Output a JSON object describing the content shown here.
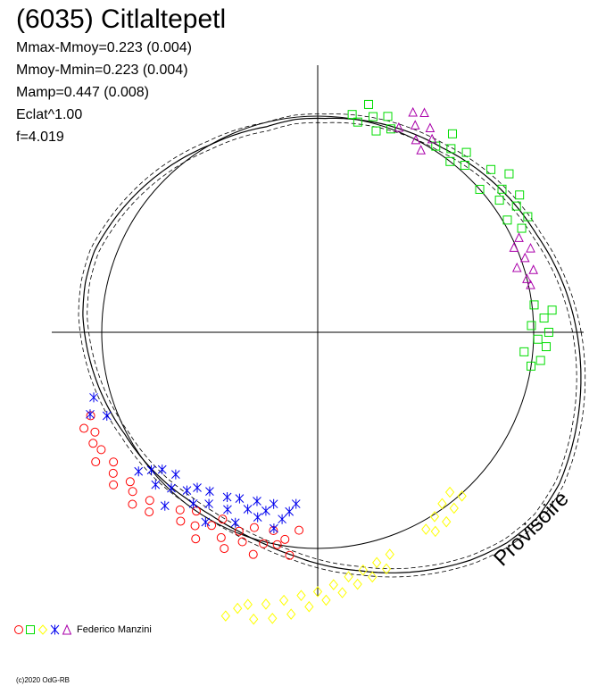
{
  "title": "(6035) Citlaltepetl",
  "stats": [
    "Mmax-Mmoy=0.223 (0.004)",
    "Mmoy-Mmin=0.223 (0.004)",
    "Mamp=0.447 (0.008)",
    "Eclat^1.00",
    "f=4.019"
  ],
  "watermark": "Provisoire",
  "legend": {
    "observer": "Federico Manzini"
  },
  "copyright": "(c)2020 OdG-RB",
  "chart_data": {
    "type": "scatter",
    "polar": true,
    "period_label": "f=4.019",
    "reference_circle": 1.0,
    "model_curve": {
      "r": [
        1.2,
        1.17,
        1.14,
        1.11,
        1.09,
        1.07,
        1.05,
        1.03,
        1.02,
        1.01,
        1.0,
        0.99,
        0.99,
        0.98,
        0.99,
        1.0,
        1.02,
        1.04,
        1.06,
        1.08,
        1.1,
        1.1,
        1.09,
        1.07,
        1.05,
        1.03,
        1.01,
        1.0,
        0.99,
        0.98,
        0.98,
        0.99,
        1.01,
        1.04,
        1.08,
        1.12,
        1.17,
        1.22,
        1.27,
        1.31,
        1.33,
        1.32,
        1.29,
        1.26,
        1.23
      ],
      "uncertainty": 0.02
    },
    "series": [
      {
        "marker": "circle",
        "color": "#ff0000",
        "points": [
          {
            "phase": 0.573,
            "r": 1.16
          },
          {
            "phase": 0.579,
            "r": 1.14
          },
          {
            "phase": 0.584,
            "r": 1.19
          },
          {
            "phase": 0.59,
            "r": 1.12
          },
          {
            "phase": 0.596,
            "r": 1.15
          },
          {
            "phase": 0.602,
            "r": 1.18
          },
          {
            "phase": 0.607,
            "r": 1.11
          },
          {
            "phase": 0.613,
            "r": 1.13
          },
          {
            "phase": 0.619,
            "r": 1.17
          },
          {
            "phase": 0.625,
            "r": 1.1
          },
          {
            "phase": 0.63,
            "r": 1.14
          },
          {
            "phase": 0.567,
            "r": 1.13
          },
          {
            "phase": 0.562,
            "r": 1.17
          },
          {
            "phase": 0.556,
            "r": 1.12
          },
          {
            "phase": 0.645,
            "r": 1.04
          },
          {
            "phase": 0.65,
            "r": 1.08
          },
          {
            "phase": 0.655,
            "r": 1.0
          },
          {
            "phase": 0.66,
            "r": 1.06
          },
          {
            "phase": 0.665,
            "r": 1.11
          },
          {
            "phase": 0.67,
            "r": 1.02
          },
          {
            "phase": 0.675,
            "r": 0.97
          },
          {
            "phase": 0.68,
            "r": 1.05
          },
          {
            "phase": 0.685,
            "r": 1.09
          },
          {
            "phase": 0.69,
            "r": 0.99
          },
          {
            "phase": 0.695,
            "r": 1.03
          },
          {
            "phase": 0.7,
            "r": 0.95
          },
          {
            "phase": 0.705,
            "r": 1.07
          },
          {
            "phase": 0.71,
            "r": 1.01
          },
          {
            "phase": 0.715,
            "r": 0.94
          },
          {
            "phase": 0.72,
            "r": 1.0
          },
          {
            "phase": 0.725,
            "r": 0.97
          },
          {
            "phase": 0.73,
            "r": 1.04
          },
          {
            "phase": 0.735,
            "r": 0.92
          }
        ]
      },
      {
        "marker": "square",
        "color": "#00dd00",
        "points": [
          {
            "phase": 0.975,
            "r": 1.0
          },
          {
            "phase": 0.98,
            "r": 1.04
          },
          {
            "phase": 0.985,
            "r": 0.96
          },
          {
            "phase": 0.99,
            "r": 1.06
          },
          {
            "phase": 0.995,
            "r": 1.02
          },
          {
            "phase": 0.0,
            "r": 1.07
          },
          {
            "phase": 0.005,
            "r": 0.99
          },
          {
            "phase": 0.01,
            "r": 1.05
          },
          {
            "phase": 0.015,
            "r": 1.09
          },
          {
            "phase": 0.02,
            "r": 1.01
          },
          {
            "phase": 0.075,
            "r": 1.06
          },
          {
            "phase": 0.08,
            "r": 1.11
          },
          {
            "phase": 0.085,
            "r": 1.02
          },
          {
            "phase": 0.09,
            "r": 1.09
          },
          {
            "phase": 0.095,
            "r": 1.13
          },
          {
            "phase": 0.1,
            "r": 1.04
          },
          {
            "phase": 0.105,
            "r": 1.08
          },
          {
            "phase": 0.11,
            "r": 1.15
          },
          {
            "phase": 0.115,
            "r": 1.0
          },
          {
            "phase": 0.12,
            "r": 1.1
          },
          {
            "phase": 0.135,
            "r": 1.03
          },
          {
            "phase": 0.14,
            "r": 1.08
          },
          {
            "phase": 0.145,
            "r": 1.0
          },
          {
            "phase": 0.15,
            "r": 1.05
          },
          {
            "phase": 0.155,
            "r": 1.11
          },
          {
            "phase": 0.16,
            "r": 1.02
          },
          {
            "phase": 0.195,
            "r": 1.0
          },
          {
            "phase": 0.2,
            "r": 1.05
          },
          {
            "phase": 0.205,
            "r": 0.97
          },
          {
            "phase": 0.21,
            "r": 1.03
          },
          {
            "phase": 0.215,
            "r": 1.08
          },
          {
            "phase": 0.22,
            "r": 0.99
          },
          {
            "phase": 0.225,
            "r": 1.02
          }
        ]
      },
      {
        "marker": "diamond",
        "color": "#ffff00",
        "points": [
          {
            "phase": 0.7,
            "r": 1.38
          },
          {
            "phase": 0.705,
            "r": 1.33
          },
          {
            "phase": 0.71,
            "r": 1.3
          },
          {
            "phase": 0.715,
            "r": 1.36
          },
          {
            "phase": 0.72,
            "r": 1.28
          },
          {
            "phase": 0.725,
            "r": 1.34
          },
          {
            "phase": 0.73,
            "r": 1.25
          },
          {
            "phase": 0.735,
            "r": 1.31
          },
          {
            "phase": 0.74,
            "r": 1.22
          },
          {
            "phase": 0.745,
            "r": 1.27
          },
          {
            "phase": 0.75,
            "r": 1.2
          },
          {
            "phase": 0.755,
            "r": 1.24
          },
          {
            "phase": 0.76,
            "r": 1.17
          },
          {
            "phase": 0.765,
            "r": 1.21
          },
          {
            "phase": 0.77,
            "r": 1.14
          },
          {
            "phase": 0.775,
            "r": 1.18
          },
          {
            "phase": 0.78,
            "r": 1.12
          },
          {
            "phase": 0.785,
            "r": 1.16
          },
          {
            "phase": 0.79,
            "r": 1.1
          },
          {
            "phase": 0.795,
            "r": 1.14
          },
          {
            "phase": 0.8,
            "r": 1.08
          },
          {
            "phase": 0.83,
            "r": 1.04
          },
          {
            "phase": 0.835,
            "r": 1.07
          },
          {
            "phase": 0.84,
            "r": 1.01
          },
          {
            "phase": 0.845,
            "r": 1.06
          },
          {
            "phase": 0.85,
            "r": 0.98
          },
          {
            "phase": 0.855,
            "r": 1.03
          },
          {
            "phase": 0.86,
            "r": 0.96
          },
          {
            "phase": 0.865,
            "r": 1.01
          }
        ]
      },
      {
        "marker": "star",
        "color": "#0000ee",
        "points": [
          {
            "phase": 0.555,
            "r": 1.12
          },
          {
            "phase": 0.545,
            "r": 1.08
          },
          {
            "phase": 0.56,
            "r": 1.05
          },
          {
            "phase": 0.605,
            "r": 1.05
          },
          {
            "phase": 0.61,
            "r": 1.0
          },
          {
            "phase": 0.615,
            "r": 0.96
          },
          {
            "phase": 0.62,
            "r": 1.03
          },
          {
            "phase": 0.625,
            "r": 0.93
          },
          {
            "phase": 0.63,
            "r": 0.99
          },
          {
            "phase": 0.635,
            "r": 1.07
          },
          {
            "phase": 0.64,
            "r": 0.95
          },
          {
            "phase": 0.645,
            "r": 0.91
          },
          {
            "phase": 0.65,
            "r": 0.98
          },
          {
            "phase": 0.655,
            "r": 0.89
          },
          {
            "phase": 0.66,
            "r": 0.94
          },
          {
            "phase": 0.665,
            "r": 1.02
          },
          {
            "phase": 0.67,
            "r": 0.87
          },
          {
            "phase": 0.675,
            "r": 0.92
          },
          {
            "phase": 0.68,
            "r": 0.85
          },
          {
            "phase": 0.685,
            "r": 0.96
          },
          {
            "phase": 0.69,
            "r": 0.88
          },
          {
            "phase": 0.695,
            "r": 0.83
          },
          {
            "phase": 0.7,
            "r": 0.9
          },
          {
            "phase": 0.705,
            "r": 0.86
          },
          {
            "phase": 0.71,
            "r": 0.82
          },
          {
            "phase": 0.715,
            "r": 0.93
          },
          {
            "phase": 0.72,
            "r": 0.88
          },
          {
            "phase": 0.725,
            "r": 0.84
          },
          {
            "phase": 0.73,
            "r": 0.8
          }
        ]
      },
      {
        "marker": "triangle",
        "color": "#aa00aa",
        "points": [
          {
            "phase": 0.04,
            "r": 1.0
          },
          {
            "phase": 0.045,
            "r": 1.04
          },
          {
            "phase": 0.05,
            "r": 0.97
          },
          {
            "phase": 0.055,
            "r": 1.02
          },
          {
            "phase": 0.06,
            "r": 1.06
          },
          {
            "phase": 0.065,
            "r": 0.99
          },
          {
            "phase": 0.07,
            "r": 1.03
          },
          {
            "phase": 0.035,
            "r": 1.01
          },
          {
            "phase": 0.165,
            "r": 1.04
          },
          {
            "phase": 0.17,
            "r": 1.08
          },
          {
            "phase": 0.175,
            "r": 1.0
          },
          {
            "phase": 0.18,
            "r": 1.06
          },
          {
            "phase": 0.185,
            "r": 1.11
          },
          {
            "phase": 0.19,
            "r": 1.02
          },
          {
            "phase": 0.168,
            "r": 0.97
          },
          {
            "phase": 0.178,
            "r": 1.13
          }
        ]
      }
    ]
  }
}
